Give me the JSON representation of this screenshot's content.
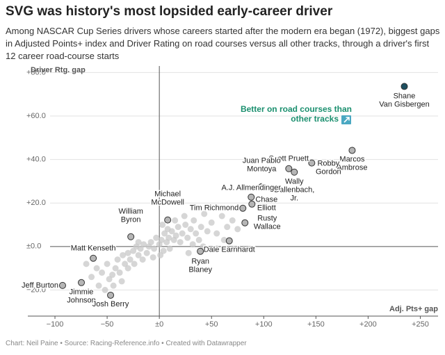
{
  "chart_data": {
    "type": "scatter",
    "title": "SVG was history's most lopsided early-career driver",
    "subtitle": "Among NASCAR Cup Series drivers whose careers started after the modern era began (1972), biggest gaps in Adjusted Points+ index and Driver Rating on road courses versus all other tracks, through a driver's first 12 career road-course starts",
    "source": "Chart: Neil Paine • Source: Racing-Reference.info • Created with Datawrapper",
    "x_label": "Adj. Pts+ gap",
    "y_label": "Driver Rtg. gap",
    "annotation": [
      "Better on road courses than",
      "other tracks"
    ],
    "annotation_color": "#1a8f6e",
    "xlim": [
      -126,
      267
    ],
    "ylim": [
      -32,
      83
    ],
    "xticks": [
      {
        "value": -100,
        "label": "−100"
      },
      {
        "value": -50,
        "label": "−50"
      },
      {
        "value": 0,
        "label": "±0"
      },
      {
        "value": 50,
        "label": "+50"
      },
      {
        "value": 100,
        "label": "+100"
      },
      {
        "value": 150,
        "label": "+150"
      },
      {
        "value": 200,
        "label": "+200"
      },
      {
        "value": 250,
        "label": "+250"
      }
    ],
    "yticks": [
      {
        "value": -20,
        "label": "−20.0"
      },
      {
        "value": 0,
        "label": "±0.0"
      },
      {
        "value": 20,
        "label": "+20.0"
      },
      {
        "value": 40,
        "label": "+40.0"
      },
      {
        "value": 60,
        "label": "+60.0"
      },
      {
        "value": 80,
        "label": "+80.0"
      }
    ],
    "grid": true,
    "series": [
      {
        "color": "#c8c8c8",
        "x": [
          -60,
          -55,
          -50,
          -48,
          -45,
          -42,
          -40,
          -38,
          -35,
          -33,
          -30,
          -28,
          -25,
          -22,
          -20,
          -18,
          -15,
          -12,
          -10,
          -8,
          -5,
          -3,
          0,
          2,
          4,
          5,
          7,
          9,
          10,
          12,
          14,
          16,
          18,
          20,
          22,
          25,
          27,
          30,
          33,
          35,
          38,
          40,
          43,
          46,
          50,
          55,
          60,
          65,
          70,
          75,
          -65,
          -58,
          -52,
          -44,
          -36,
          -30,
          -24,
          -16,
          -6,
          1,
          8,
          15,
          24,
          32,
          42,
          55,
          -70,
          -20,
          3,
          28,
          48,
          62
        ],
        "y": [
          -10,
          -12,
          -8,
          -15,
          -13,
          -10,
          -6,
          -12,
          -4,
          -8,
          -3,
          -6,
          -2,
          0,
          -4,
          -1,
          1,
          -3,
          0,
          2,
          -1,
          4,
          1,
          3,
          -2,
          6,
          2,
          4,
          -1,
          7,
          3,
          5,
          9,
          2,
          6,
          10,
          4,
          8,
          12,
          6,
          3,
          9,
          15,
          7,
          11,
          6,
          14,
          9,
          12,
          8,
          -14,
          -18,
          -20,
          -18,
          -16,
          -10,
          -8,
          -6,
          -5,
          -4,
          8,
          12,
          14,
          1,
          0,
          -1,
          -8,
          2,
          10,
          -3,
          18,
          3
        ]
      },
      {
        "color": "#b5b5b5",
        "highlight_color": "#1d4f60",
        "labels": [
          [
            "Shane",
            "Van Gisbergen"
          ],
          [
            "Marcos",
            "Ambrose"
          ],
          [
            "Robby",
            "Gordon"
          ],
          [
            "Scott Pruett"
          ],
          [
            "Wally",
            "Dallenbach,",
            "Jr."
          ],
          [
            "Juan Pablo",
            "Montoya"
          ],
          [
            "A.J. Allmendinger"
          ],
          [
            "Chase",
            "Elliott"
          ],
          [
            "Tim Richmond"
          ],
          [
            "Rusty",
            "Wallace"
          ],
          [
            "Michael",
            "McDowell"
          ],
          [
            "William",
            "Byron"
          ],
          [
            "Dale Earnhardt"
          ],
          [
            "Ryan",
            "Blaney"
          ],
          [
            "Matt Kenseth"
          ],
          [
            "Jeff Burton"
          ],
          [
            "Jimmie",
            "Johnson"
          ],
          [
            "Josh Berry"
          ]
        ],
        "x": [
          234.7,
          184.7,
          146,
          124,
          129.3,
          98,
          88,
          88.7,
          80,
          82,
          8,
          -27.3,
          67,
          39.3,
          -63.3,
          -92.7,
          -74.7,
          -46.7
        ],
        "y": [
          73.6,
          44.2,
          38.4,
          35.8,
          34.2,
          27.5,
          22.7,
          19.5,
          17.6,
          10.9,
          12.2,
          4.5,
          2.6,
          -2.2,
          -5.4,
          -17.9,
          -16.6,
          -22.4
        ]
      }
    ]
  }
}
